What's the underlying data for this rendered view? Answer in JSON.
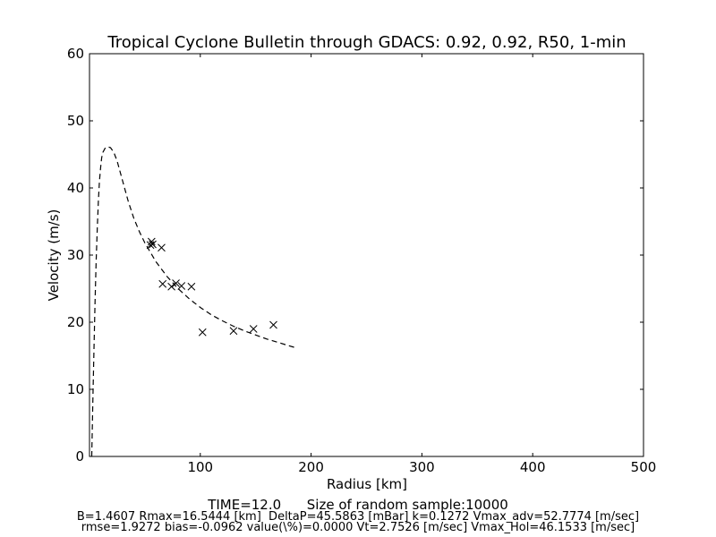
{
  "chart_data": {
    "type": "scatter",
    "title": "Tropical Cyclone Bulletin through GDACS: 0.92, 0.92, R50, 1-min",
    "xlabel": "Radius [km]",
    "ylabel": "Velocity (m/s)",
    "xlim": [
      0,
      500
    ],
    "ylim": [
      0,
      60
    ],
    "x_ticks": [
      100,
      200,
      300,
      400,
      500
    ],
    "y_ticks": [
      0,
      10,
      20,
      30,
      40,
      50,
      60
    ],
    "grid": false,
    "series": [
      {
        "style": "dashed-line",
        "color": "#000000",
        "x": [
          2,
          3,
          4,
          5,
          6,
          7,
          8,
          9,
          10,
          11,
          12,
          14,
          16.5,
          19,
          22,
          25,
          30,
          35,
          40,
          45,
          50,
          60,
          70,
          80,
          90,
          100,
          110,
          120,
          130,
          140,
          150,
          160,
          170,
          180,
          186
        ],
        "y": [
          0,
          8,
          16,
          23,
          29,
          34,
          38,
          41,
          43,
          44.5,
          45.3,
          45.9,
          46.15,
          46.0,
          45.3,
          44.0,
          41.0,
          38.0,
          35.5,
          33.5,
          31.8,
          29.0,
          26.8,
          25.0,
          23.5,
          22.2,
          21.1,
          20.2,
          19.4,
          18.7,
          18.1,
          17.5,
          17.0,
          16.5,
          16.2
        ]
      },
      {
        "style": "x-markers",
        "color": "#000000",
        "x": [
          55,
          56,
          57,
          65,
          66,
          74,
          78,
          83,
          92,
          102,
          130,
          148,
          166
        ],
        "y": [
          31.5,
          32.0,
          31.6,
          31.1,
          25.7,
          25.3,
          25.8,
          25.4,
          25.3,
          18.5,
          18.7,
          19.0,
          19.6
        ]
      }
    ]
  },
  "footer": {
    "line1": "TIME=12.0      Size of random sample:10000",
    "line2": "B=1.4607 Rmax=16.5444 [km]  DeltaP=45.5863 [mBar] k=0.1272 Vmax_adv=52.7774 [m/sec]",
    "line3": "rmse=1.9272 bias=-0.0962 value(\\%)=0.0000 Vt=2.7526 [m/sec] Vmax_Hol=46.1533 [m/sec]"
  }
}
